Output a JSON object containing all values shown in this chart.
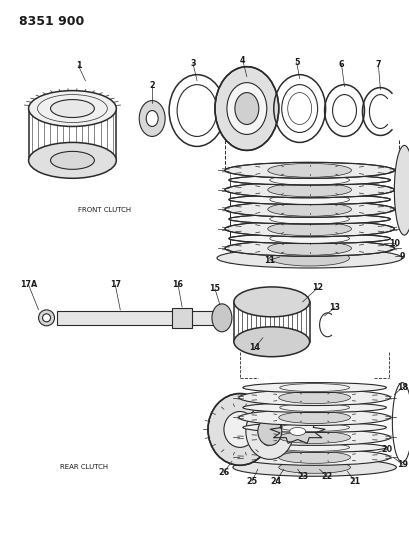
{
  "title": "8351 900",
  "bg_color": "#ffffff",
  "line_color": "#2a2a2a",
  "label_color": "#1a1a1a",
  "front_clutch_label": "FRONT CLUTCH",
  "rear_clutch_label": "REAR CLUTCH",
  "figsize": [
    4.1,
    5.33
  ],
  "dpi": 100
}
